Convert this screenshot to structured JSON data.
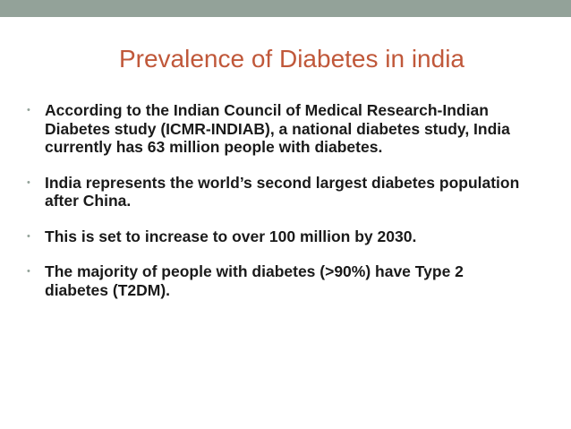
{
  "slide": {
    "title": "Prevalence of Diabetes in india",
    "bullet_marker": "•",
    "bullets": [
      {
        "text": "According to the Indian Council of Medical Research-Indian Diabetes study (ICMR-INDIAB), a national diabetes study, India currently has 63 million people with diabetes."
      },
      {
        "text": " India represents the world’s second largest diabetes population after China."
      },
      {
        "text": " This is set to increase to over 100 million by 2030."
      },
      {
        "text": "The majority of people with diabetes (>90%) have Type 2 diabetes (T2DM)."
      }
    ]
  },
  "colors": {
    "top_bar": "#93a299",
    "title": "#c0583a",
    "body_text": "#1a1a1a",
    "bullet_marker": "#93a299",
    "background": "#ffffff"
  }
}
